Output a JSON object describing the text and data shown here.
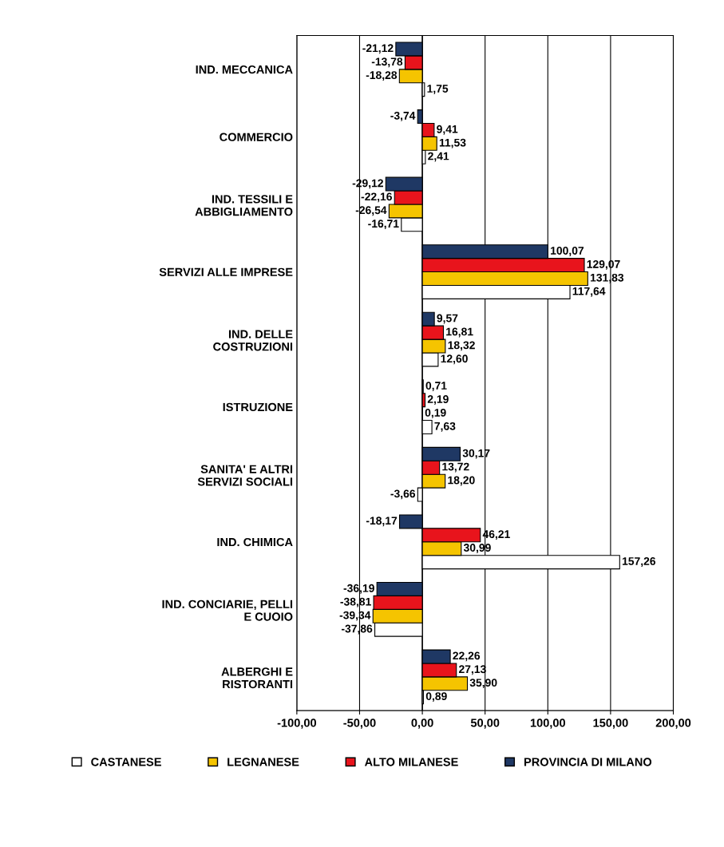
{
  "chart_data": {
    "type": "bar",
    "orientation": "horizontal",
    "categories": [
      "IND. MECCANICA",
      "COMMERCIO",
      "IND. TESSILI E\nABBIGLIAMENTO",
      "SERVIZI ALLE IMPRESE",
      "IND. DELLE\nCOSTRUZIONI",
      "ISTRUZIONE",
      "SANITA' E ALTRI\nSERVIZI SOCIALI",
      "IND. CHIMICA",
      "IND. CONCIARIE, PELLI\nE CUOIO",
      "ALBERGHI E\nRISTORANTI"
    ],
    "series": [
      {
        "name": "CASTANESE",
        "color": "#ffffff",
        "values": [
          1.75,
          2.41,
          -16.71,
          117.64,
          12.6,
          7.63,
          -3.66,
          157.26,
          -37.86,
          0.89
        ],
        "value_labels": [
          "1,75",
          "2,41",
          "-16,71",
          "117,64",
          "12,60",
          "7,63",
          "-3,66",
          "157,26",
          "-37,86",
          "0,89"
        ]
      },
      {
        "name": "LEGNANESE",
        "color": "#f5c400",
        "values": [
          -18.28,
          11.53,
          -26.54,
          131.83,
          18.32,
          0.19,
          18.2,
          30.99,
          -39.34,
          35.9
        ],
        "value_labels": [
          "-18,28",
          "11,53",
          "-26,54",
          "131,83",
          "18,32",
          "0,19",
          "18,20",
          "30,99",
          "-39,34",
          "35,90"
        ]
      },
      {
        "name": "ALTO MILANESE",
        "color": "#e8141c",
        "values": [
          -13.78,
          9.41,
          -22.16,
          129.07,
          16.81,
          2.19,
          13.72,
          46.21,
          -38.81,
          27.13
        ],
        "value_labels": [
          "-13,78",
          "9,41",
          "-22,16",
          "129,07",
          "16,81",
          "2,19",
          "13,72",
          "46,21",
          "-38,81",
          "27,13"
        ]
      },
      {
        "name": "PROVINCIA DI MILANO",
        "color": "#1f3864",
        "values": [
          -21.12,
          -3.74,
          -29.12,
          100.07,
          9.57,
          0.71,
          30.17,
          -18.17,
          -36.19,
          22.26
        ],
        "value_labels": [
          "-21,12",
          "-3,74",
          "-29,12",
          "100,07",
          "9,57",
          "0,71",
          "30,17",
          "-18,17",
          "-36,19",
          "22,26"
        ]
      }
    ],
    "xlim": [
      -100,
      200
    ],
    "xticks": [
      {
        "value": -100,
        "label": "-100,00"
      },
      {
        "value": -50,
        "label": "-50,00"
      },
      {
        "value": 0,
        "label": "0,00"
      },
      {
        "value": 50,
        "label": "50,00"
      },
      {
        "value": 100,
        "label": "100,00"
      },
      {
        "value": 150,
        "label": "150,00"
      },
      {
        "value": 200,
        "label": "200,00"
      }
    ],
    "grid": "x",
    "legend": "bottom"
  }
}
